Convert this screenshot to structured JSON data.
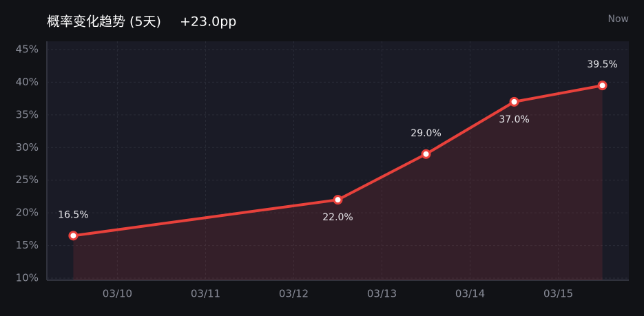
{
  "chart_data": {
    "type": "line",
    "title": "概率变化趋势 (5天)",
    "change": "+23.0pp",
    "corner_label": "Now",
    "x": [
      9.5,
      12.5,
      13.5,
      14.5,
      15.5
    ],
    "xlim": [
      9.2,
      15.8
    ],
    "xticks": [
      {
        "value": 10,
        "label": "03/10"
      },
      {
        "value": 11,
        "label": "03/11"
      },
      {
        "value": 12,
        "label": "03/12"
      },
      {
        "value": 13,
        "label": "03/13"
      },
      {
        "value": 14,
        "label": "03/14"
      },
      {
        "value": 15,
        "label": "03/15"
      }
    ],
    "ylim": [
      10,
      45
    ],
    "yticks": [
      {
        "value": 10,
        "label": "10%"
      },
      {
        "value": 15,
        "label": "15%"
      },
      {
        "value": 20,
        "label": "20%"
      },
      {
        "value": 25,
        "label": "25%"
      },
      {
        "value": 30,
        "label": "30%"
      },
      {
        "value": 35,
        "label": "35%"
      },
      {
        "value": 40,
        "label": "40%"
      },
      {
        "value": 45,
        "label": "45%"
      }
    ],
    "grid": true,
    "series": [
      {
        "color": "#e8413b",
        "values": [
          16.5,
          22.0,
          29.0,
          37.0,
          39.5
        ],
        "value_labels": [
          "16.5%",
          "22.0%",
          "29.0%",
          "37.0%",
          "39.5%"
        ]
      }
    ]
  }
}
